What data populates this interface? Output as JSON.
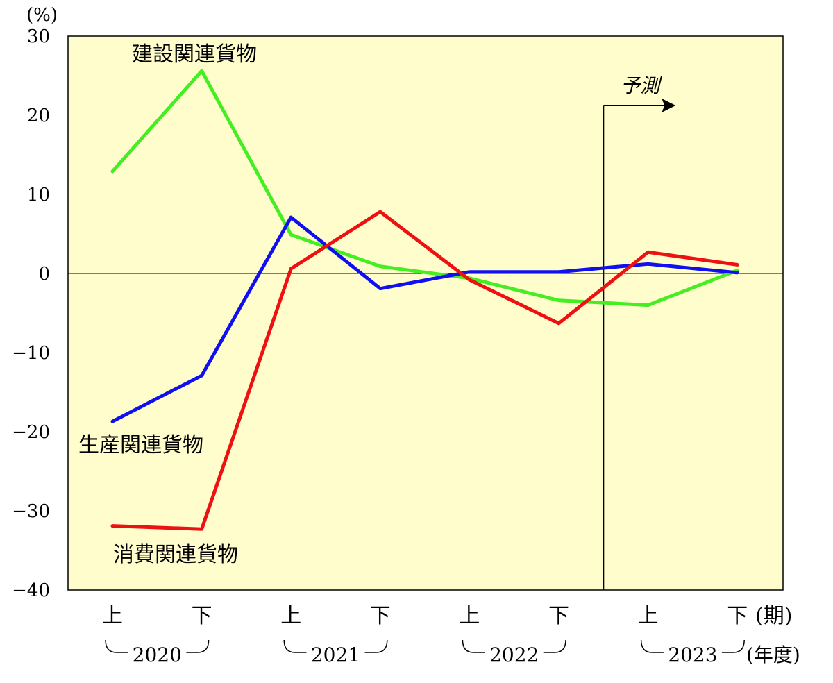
{
  "chart_data": {
    "type": "line",
    "y_unit": "(%)",
    "ylim": [
      -40,
      30
    ],
    "yticks": [
      "30",
      "20",
      "10",
      "0",
      "−10",
      "−20",
      "−30",
      "−40"
    ],
    "ytick_values": [
      30,
      20,
      10,
      0,
      -10,
      -20,
      -30,
      -40
    ],
    "x_periods": [
      "上",
      "下",
      "上",
      "下",
      "上",
      "下",
      "上",
      "下"
    ],
    "x_period_unit": "(期)",
    "years": [
      "2020",
      "2021",
      "2022",
      "2023"
    ],
    "x_year_unit": "(年度)",
    "forecast_label": "予測",
    "forecast_start_index": 6,
    "grid": false,
    "series": [
      {
        "name": "建設関連貨物",
        "color": "#44ee22",
        "values": [
          12.9,
          25.6,
          4.9,
          0.9,
          -0.6,
          -3.4,
          -4.0,
          0.4
        ]
      },
      {
        "name": "生産関連貨物",
        "color": "#1010ee",
        "values": [
          -18.7,
          -12.9,
          7.1,
          -1.9,
          0.2,
          0.2,
          1.2,
          0.1
        ]
      },
      {
        "name": "消費関連貨物",
        "color": "#ee1111",
        "values": [
          -31.9,
          -32.3,
          0.6,
          7.8,
          -0.8,
          -6.3,
          2.7,
          1.1
        ]
      }
    ]
  }
}
